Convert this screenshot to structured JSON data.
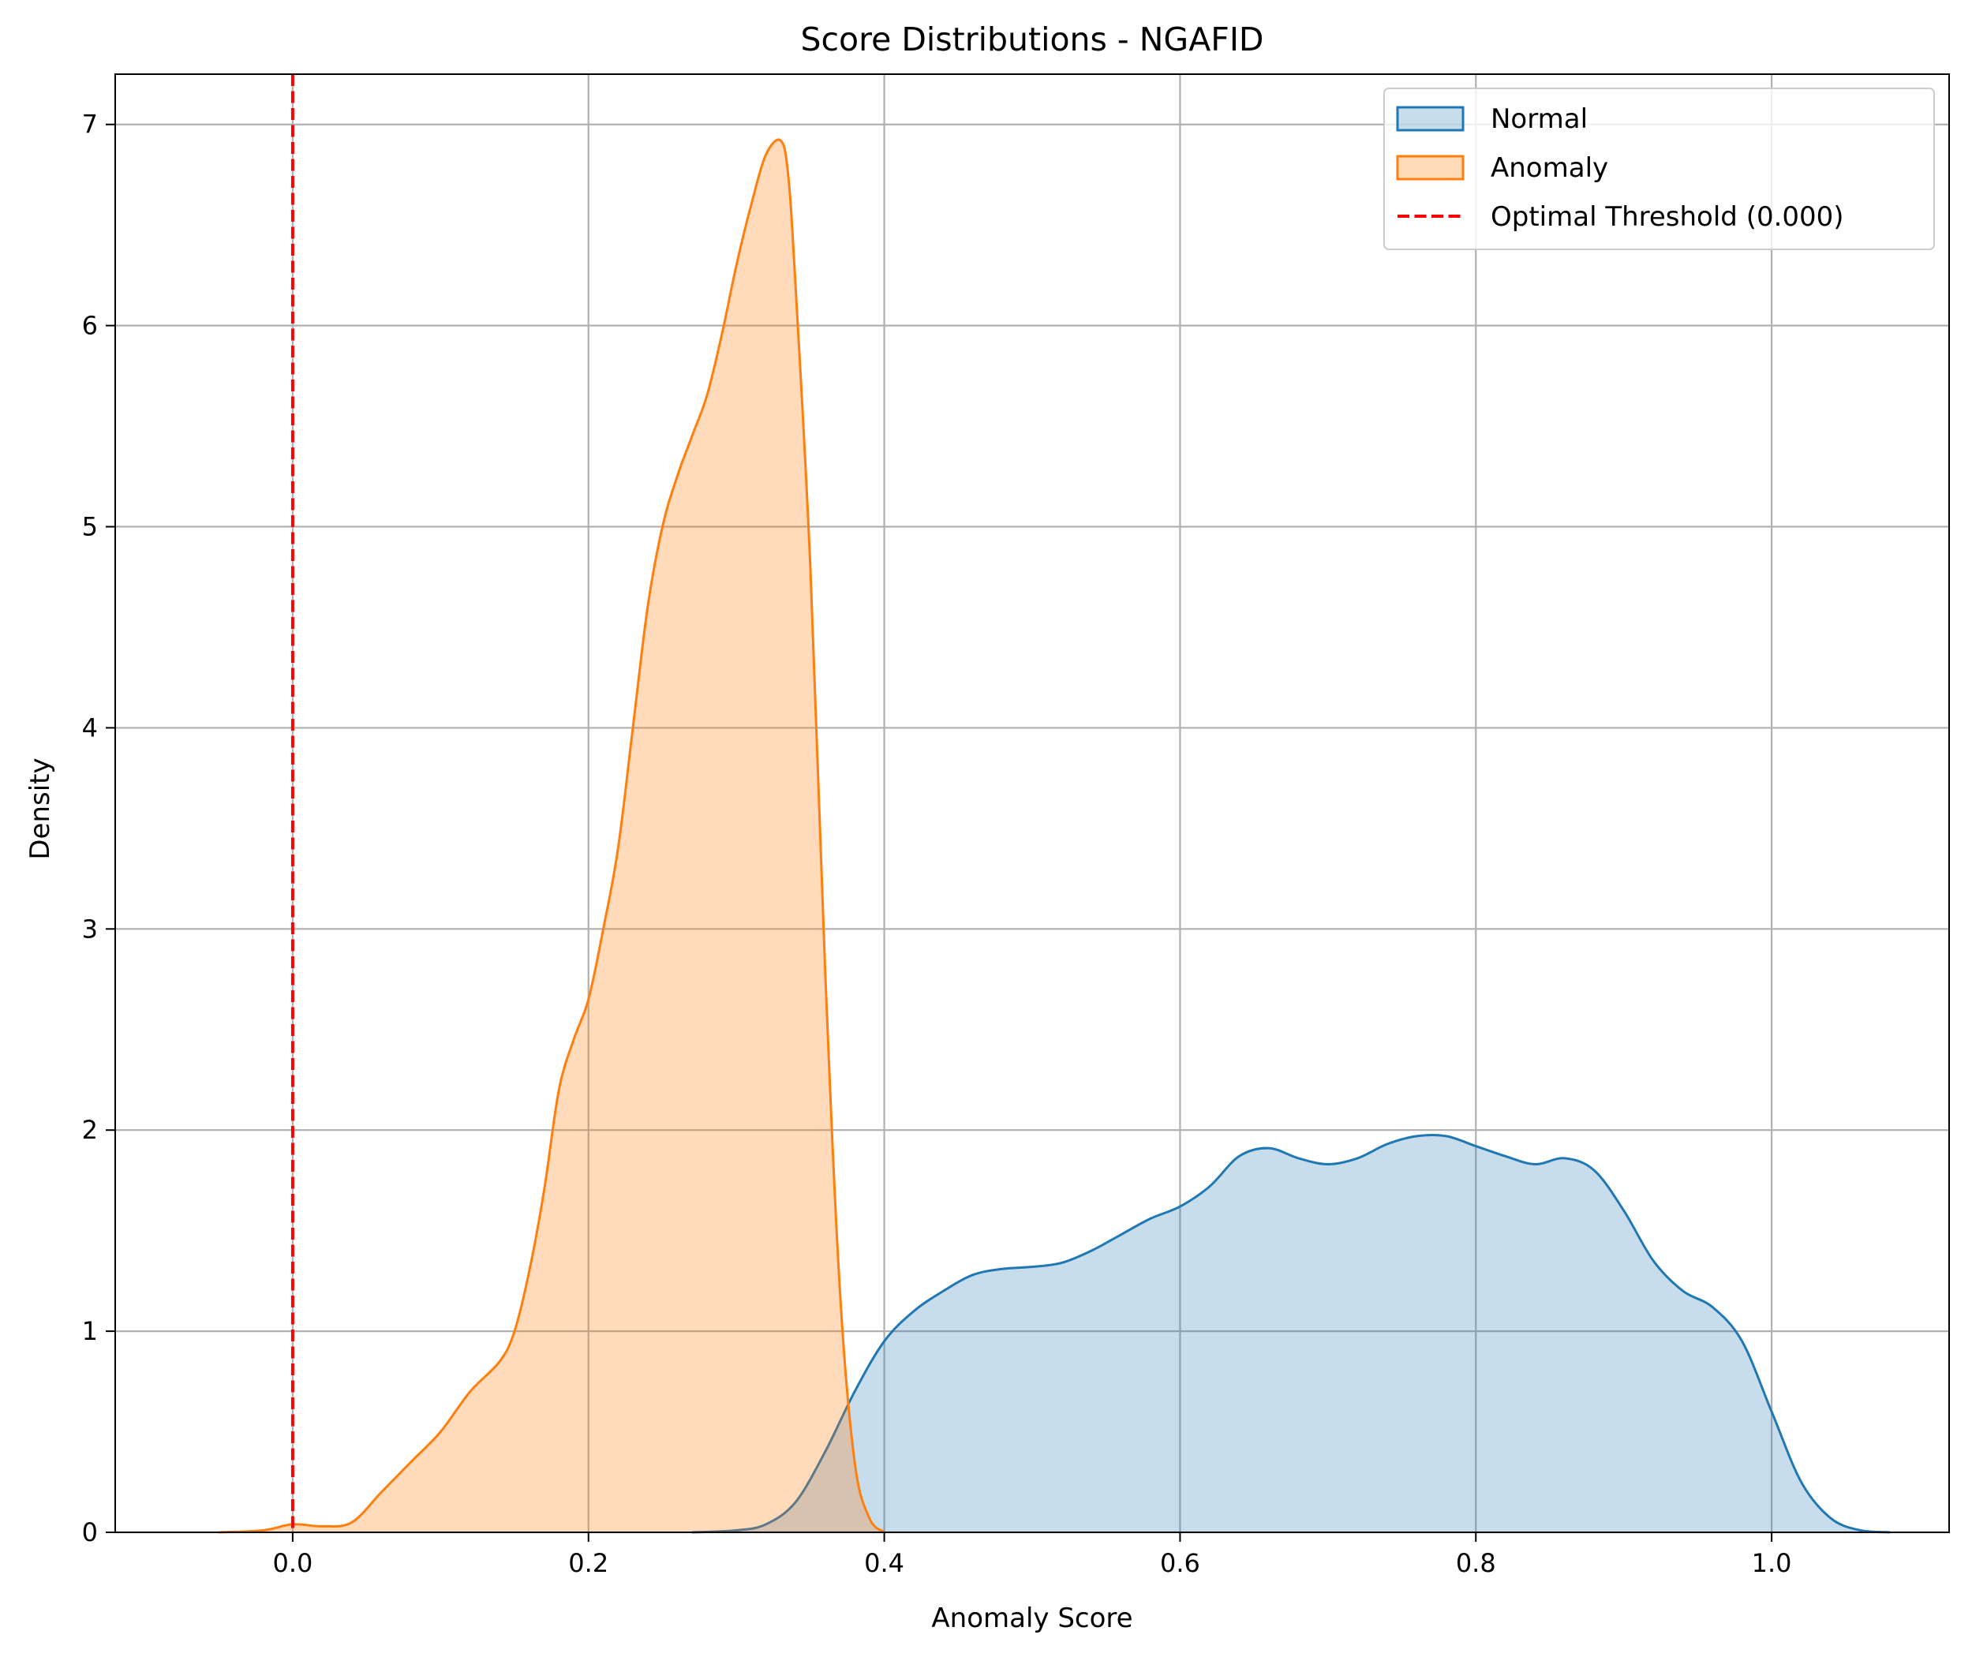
{
  "chart_data": {
    "type": "area",
    "title": "Score Distributions - NGAFID",
    "xlabel": "Anomaly Score",
    "ylabel": "Density",
    "xlim": [
      -0.12,
      1.12
    ],
    "ylim": [
      0,
      7.25
    ],
    "xticks": [
      "0.0",
      "0.2",
      "0.4",
      "0.6",
      "0.8",
      "1.0"
    ],
    "yticks": [
      "0",
      "1",
      "2",
      "3",
      "4",
      "5",
      "6",
      "7"
    ],
    "grid": true,
    "legend_position": "upper right",
    "series": [
      {
        "name": "Normal",
        "color": "#1f77b4",
        "fill_opacity": 0.25,
        "points": [
          [
            0.27,
            0.0
          ],
          [
            0.3,
            0.01
          ],
          [
            0.32,
            0.04
          ],
          [
            0.34,
            0.15
          ],
          [
            0.36,
            0.4
          ],
          [
            0.38,
            0.7
          ],
          [
            0.4,
            0.95
          ],
          [
            0.42,
            1.1
          ],
          [
            0.44,
            1.2
          ],
          [
            0.46,
            1.28
          ],
          [
            0.48,
            1.31
          ],
          [
            0.5,
            1.32
          ],
          [
            0.52,
            1.34
          ],
          [
            0.54,
            1.4
          ],
          [
            0.56,
            1.48
          ],
          [
            0.58,
            1.56
          ],
          [
            0.6,
            1.62
          ],
          [
            0.62,
            1.72
          ],
          [
            0.64,
            1.87
          ],
          [
            0.66,
            1.91
          ],
          [
            0.68,
            1.86
          ],
          [
            0.7,
            1.83
          ],
          [
            0.72,
            1.86
          ],
          [
            0.74,
            1.93
          ],
          [
            0.76,
            1.97
          ],
          [
            0.78,
            1.97
          ],
          [
            0.8,
            1.92
          ],
          [
            0.82,
            1.87
          ],
          [
            0.84,
            1.83
          ],
          [
            0.86,
            1.86
          ],
          [
            0.88,
            1.8
          ],
          [
            0.9,
            1.6
          ],
          [
            0.92,
            1.35
          ],
          [
            0.94,
            1.2
          ],
          [
            0.96,
            1.12
          ],
          [
            0.98,
            0.95
          ],
          [
            1.0,
            0.6
          ],
          [
            1.02,
            0.25
          ],
          [
            1.04,
            0.07
          ],
          [
            1.06,
            0.01
          ],
          [
            1.08,
            0.0
          ]
        ]
      },
      {
        "name": "Anomaly",
        "color": "#ff7f0e",
        "fill_opacity": 0.28,
        "points": [
          [
            -0.05,
            0.0
          ],
          [
            -0.02,
            0.01
          ],
          [
            0.0,
            0.04
          ],
          [
            0.02,
            0.03
          ],
          [
            0.04,
            0.05
          ],
          [
            0.06,
            0.2
          ],
          [
            0.08,
            0.35
          ],
          [
            0.1,
            0.5
          ],
          [
            0.12,
            0.7
          ],
          [
            0.14,
            0.85
          ],
          [
            0.15,
            1.0
          ],
          [
            0.16,
            1.3
          ],
          [
            0.17,
            1.7
          ],
          [
            0.18,
            2.2
          ],
          [
            0.19,
            2.45
          ],
          [
            0.2,
            2.65
          ],
          [
            0.21,
            3.0
          ],
          [
            0.22,
            3.4
          ],
          [
            0.23,
            4.0
          ],
          [
            0.24,
            4.6
          ],
          [
            0.25,
            5.0
          ],
          [
            0.26,
            5.25
          ],
          [
            0.27,
            5.45
          ],
          [
            0.28,
            5.65
          ],
          [
            0.29,
            5.95
          ],
          [
            0.3,
            6.3
          ],
          [
            0.31,
            6.6
          ],
          [
            0.32,
            6.85
          ],
          [
            0.33,
            6.92
          ],
          [
            0.335,
            6.75
          ],
          [
            0.34,
            6.2
          ],
          [
            0.35,
            4.8
          ],
          [
            0.36,
            2.8
          ],
          [
            0.37,
            1.2
          ],
          [
            0.38,
            0.35
          ],
          [
            0.39,
            0.07
          ],
          [
            0.4,
            0.0
          ]
        ]
      }
    ],
    "threshold": {
      "label": "Optimal Threshold (0.000)",
      "value": 0.0,
      "color": "#ff0000"
    },
    "legend": [
      "Normal",
      "Anomaly",
      "Optimal Threshold (0.000)"
    ]
  }
}
